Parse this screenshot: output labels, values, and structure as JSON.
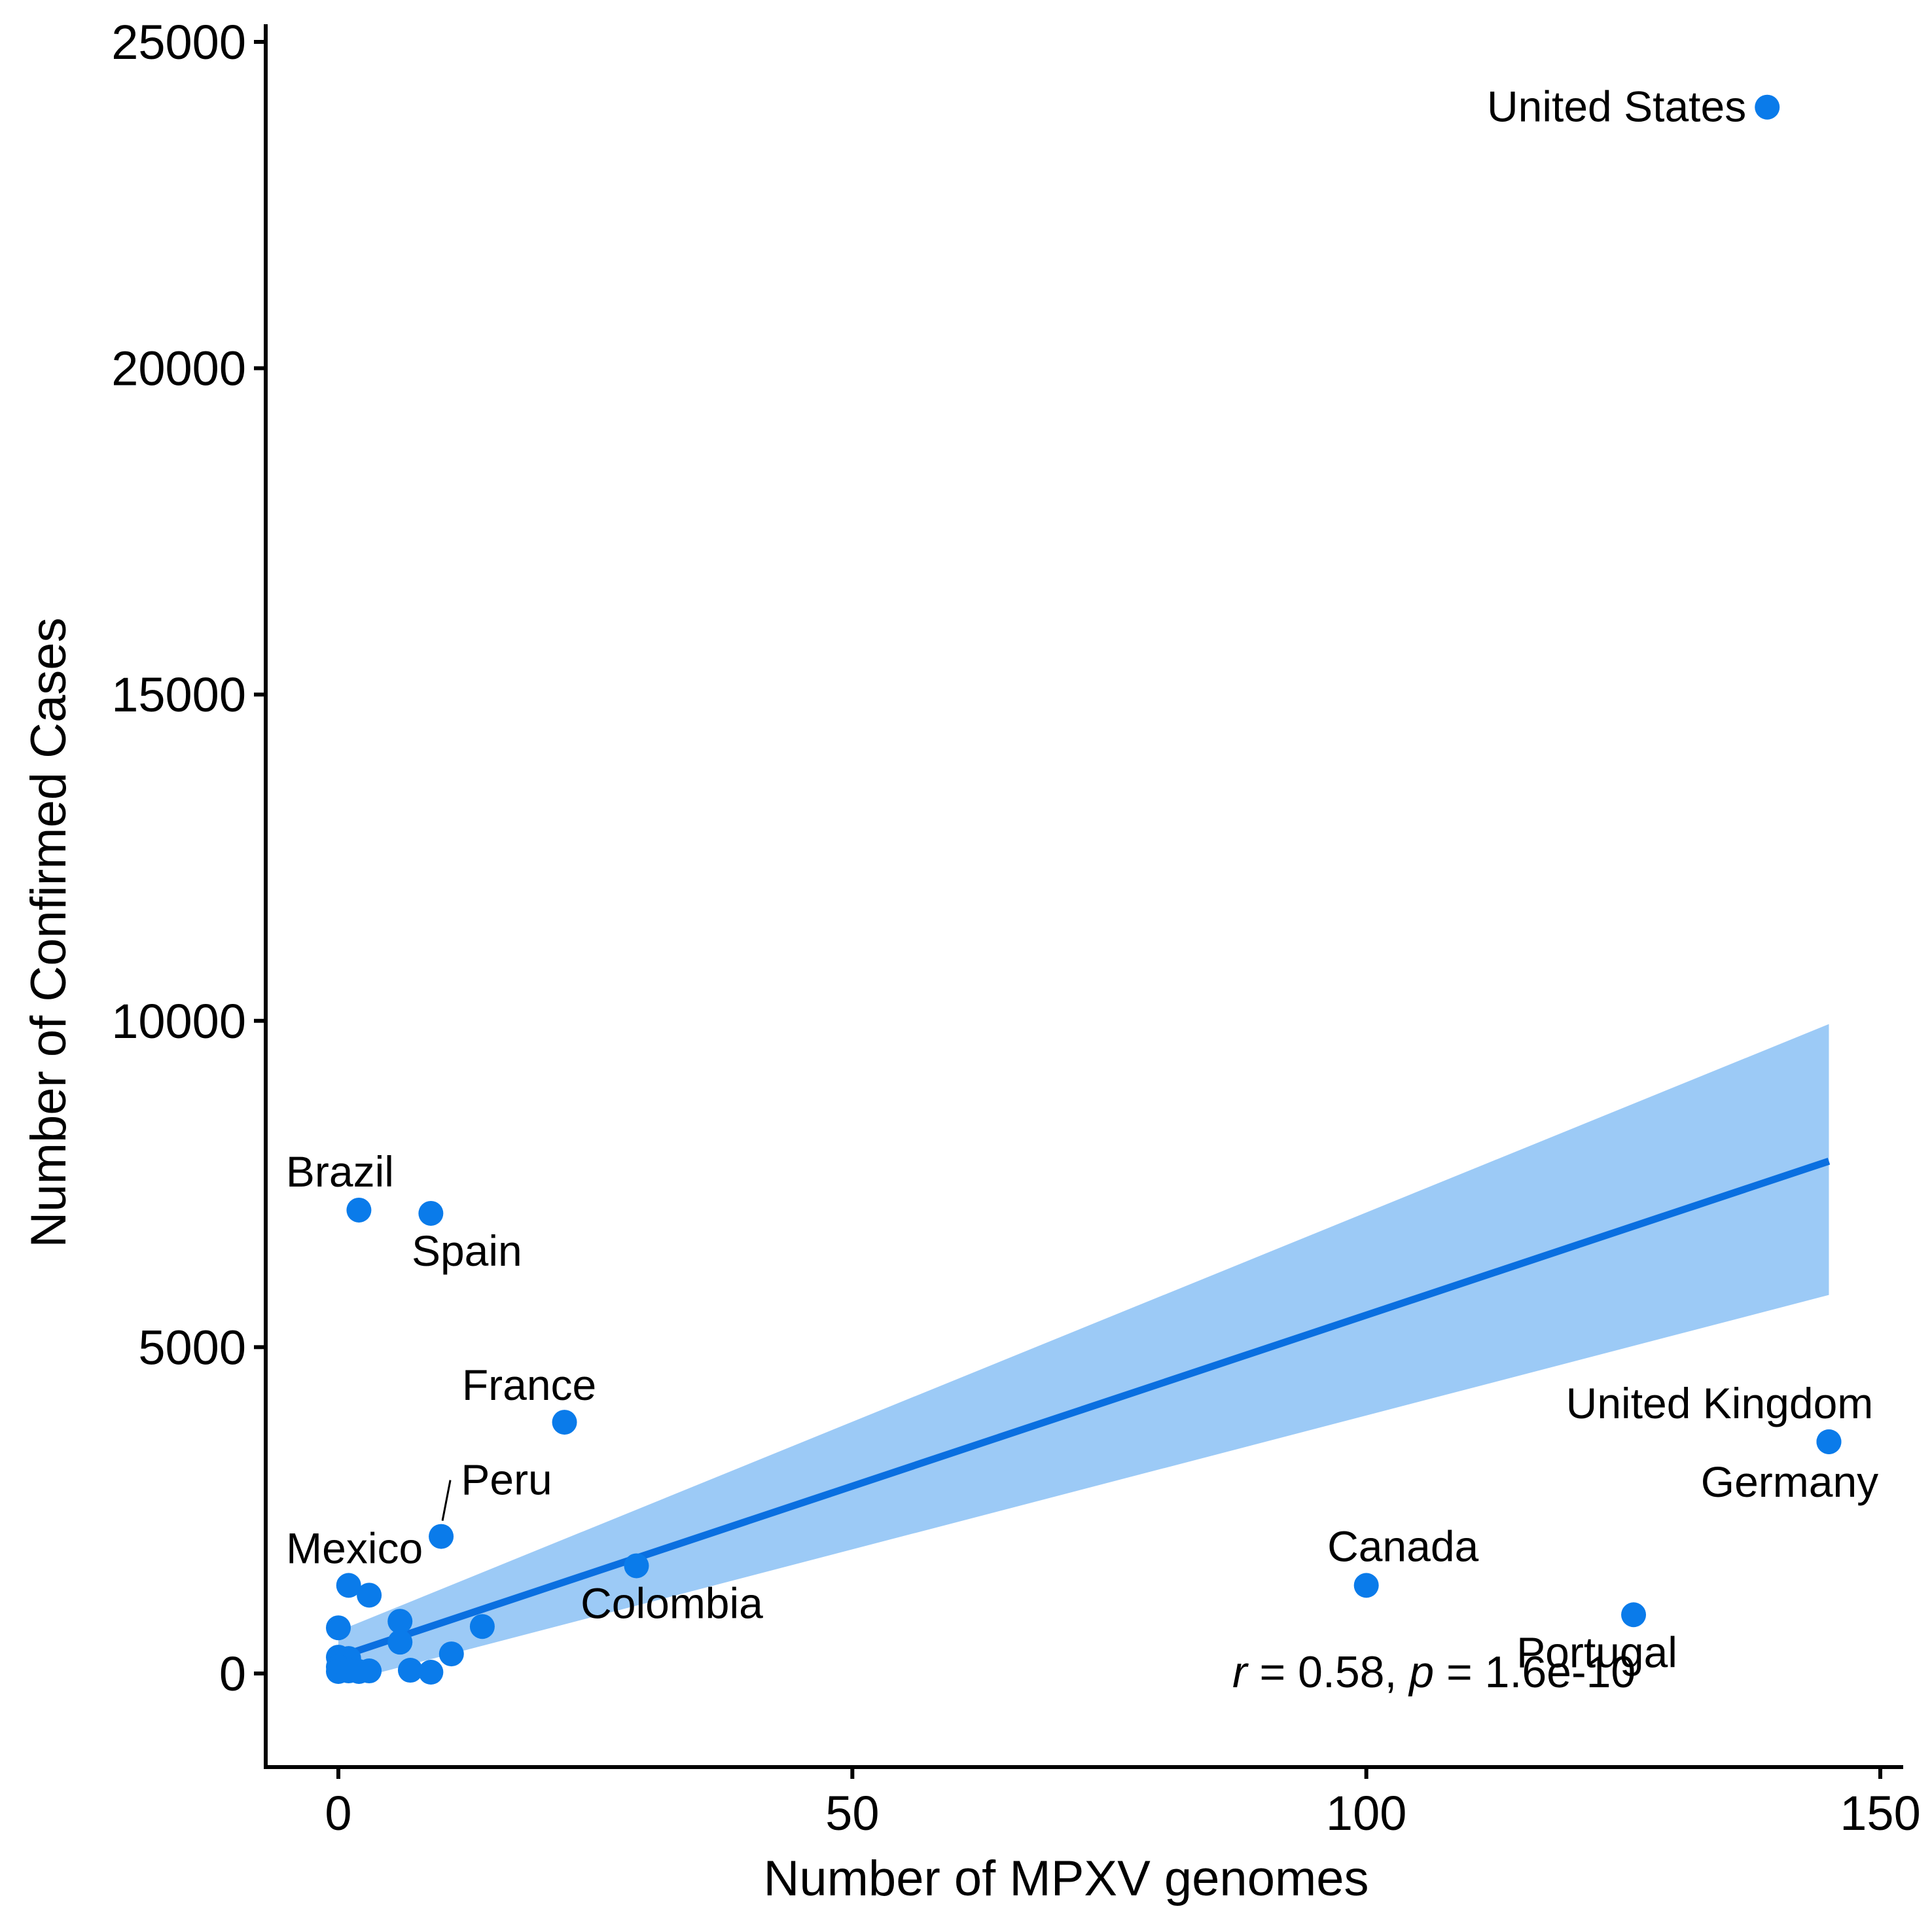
{
  "chart_data": {
    "type": "scatter",
    "xlabel": "Number of MPXV genomes",
    "ylabel": "Number of Confirmed Cases",
    "xlim": [
      -7,
      151
    ],
    "ylim": [
      -1400,
      25300
    ],
    "x_ticks": [
      0,
      50,
      100,
      150
    ],
    "y_ticks": [
      0,
      5000,
      10000,
      15000,
      20000,
      25000
    ],
    "x_tick_labels": [
      "0",
      "50",
      "100",
      "150"
    ],
    "y_tick_labels": [
      "0",
      "5000",
      "10000",
      "15000",
      "20000",
      "25000"
    ],
    "colors": {
      "points": "#0A7BEA",
      "fit_line": "#0A6FE0",
      "confidence_band": "#9CCAF6",
      "axes": "#000000"
    },
    "grid": false,
    "legend": "none",
    "series": [
      {
        "points": [
          {
            "x": 139,
            "y": 24000,
            "label": "United States"
          },
          {
            "x": 2,
            "y": 7100,
            "label": "Brazil"
          },
          {
            "x": 9,
            "y": 7050,
            "label": "Spain"
          },
          {
            "x": 22,
            "y": 3850,
            "label": "France"
          },
          {
            "x": 10,
            "y": 2100,
            "label": "Peru"
          },
          {
            "x": 1,
            "y": 1350,
            "label": "Mexico"
          },
          {
            "x": 29,
            "y": 1650,
            "label": "Colombia"
          },
          {
            "x": 100,
            "y": 1350,
            "label": "Canada"
          },
          {
            "x": 126,
            "y": 900,
            "label": "Portugal"
          },
          {
            "x": 145,
            "y": 3550,
            "label": "United Kingdom"
          },
          {
            "x": 145,
            "y": 3550,
            "label": "Germany"
          },
          {
            "x": 3,
            "y": 1200
          },
          {
            "x": 0,
            "y": 700
          },
          {
            "x": 6,
            "y": 800
          },
          {
            "x": 6,
            "y": 480
          },
          {
            "x": 14,
            "y": 720
          },
          {
            "x": 11,
            "y": 300
          },
          {
            "x": 0,
            "y": 250
          },
          {
            "x": 1,
            "y": 230
          },
          {
            "x": 0,
            "y": 100
          },
          {
            "x": 0,
            "y": 30
          },
          {
            "x": 1,
            "y": 40
          },
          {
            "x": 2,
            "y": 30
          },
          {
            "x": 3,
            "y": 40
          },
          {
            "x": 7,
            "y": 50
          },
          {
            "x": 9,
            "y": 20
          }
        ]
      }
    ],
    "fit": {
      "x_range": [
        0,
        145
      ],
      "y_at_start": 250,
      "y_at_end": 7850,
      "band_lower_start": -150,
      "band_upper_start": 650,
      "band_lower_end": 5800,
      "band_upper_end": 9950
    },
    "annotation": {
      "r_symbol": "r",
      "r_text": " = 0.58, ",
      "p_symbol": "p",
      "p_text": " = 1.6e-10"
    }
  }
}
